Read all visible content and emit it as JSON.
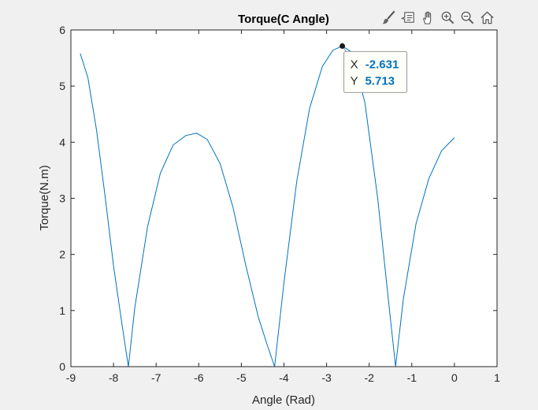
{
  "toolbar": {
    "icons": [
      "brush-icon",
      "datatip-icon",
      "pan-hand-icon",
      "zoom-in-icon",
      "zoom-out-icon",
      "home-icon"
    ]
  },
  "colors": {
    "series": "#0072bd",
    "datatip_value": "#0072bd",
    "axes_bg": "#ffffff",
    "figure_bg": "#f0f0f0",
    "text": "#262626"
  },
  "datatip": {
    "x_label": "X",
    "x_value": "-2.631",
    "y_label": "Y",
    "y_value": "5.713",
    "x": -2.631,
    "y": 5.713
  },
  "chart_data": {
    "type": "line",
    "title": "Torque(C Angle)",
    "xlabel": "Angle (Rad)",
    "ylabel": "Torque(N.m)",
    "xlim": [
      -9,
      1
    ],
    "ylim": [
      0,
      6
    ],
    "xticks": [
      -9,
      -8,
      -7,
      -6,
      -5,
      -4,
      -3,
      -2,
      -1,
      0,
      1
    ],
    "yticks": [
      0,
      1,
      2,
      3,
      4,
      5,
      6
    ],
    "grid": false,
    "series": [
      {
        "x": [
          -8.78,
          -8.6,
          -8.4,
          -8.2,
          -8.0,
          -7.8,
          -7.65,
          -7.5,
          -7.2,
          -6.9,
          -6.6,
          -6.3,
          -6.05,
          -5.8,
          -5.5,
          -5.2,
          -4.9,
          -4.6,
          -4.4,
          -4.22,
          -4.0,
          -3.7,
          -3.4,
          -3.1,
          -2.85,
          -2.631,
          -2.4,
          -2.1,
          -1.8,
          -1.55,
          -1.38,
          -1.2,
          -0.9,
          -0.6,
          -0.3,
          0.0
        ],
        "y": [
          5.58,
          5.15,
          4.22,
          3.05,
          1.8,
          0.75,
          0.0,
          1.05,
          2.5,
          3.45,
          3.95,
          4.12,
          4.16,
          4.05,
          3.62,
          2.85,
          1.82,
          0.88,
          0.4,
          0.0,
          1.5,
          3.3,
          4.6,
          5.35,
          5.64,
          5.713,
          5.6,
          4.7,
          3.0,
          1.2,
          0.0,
          1.2,
          2.55,
          3.35,
          3.85,
          4.08
        ]
      }
    ]
  }
}
